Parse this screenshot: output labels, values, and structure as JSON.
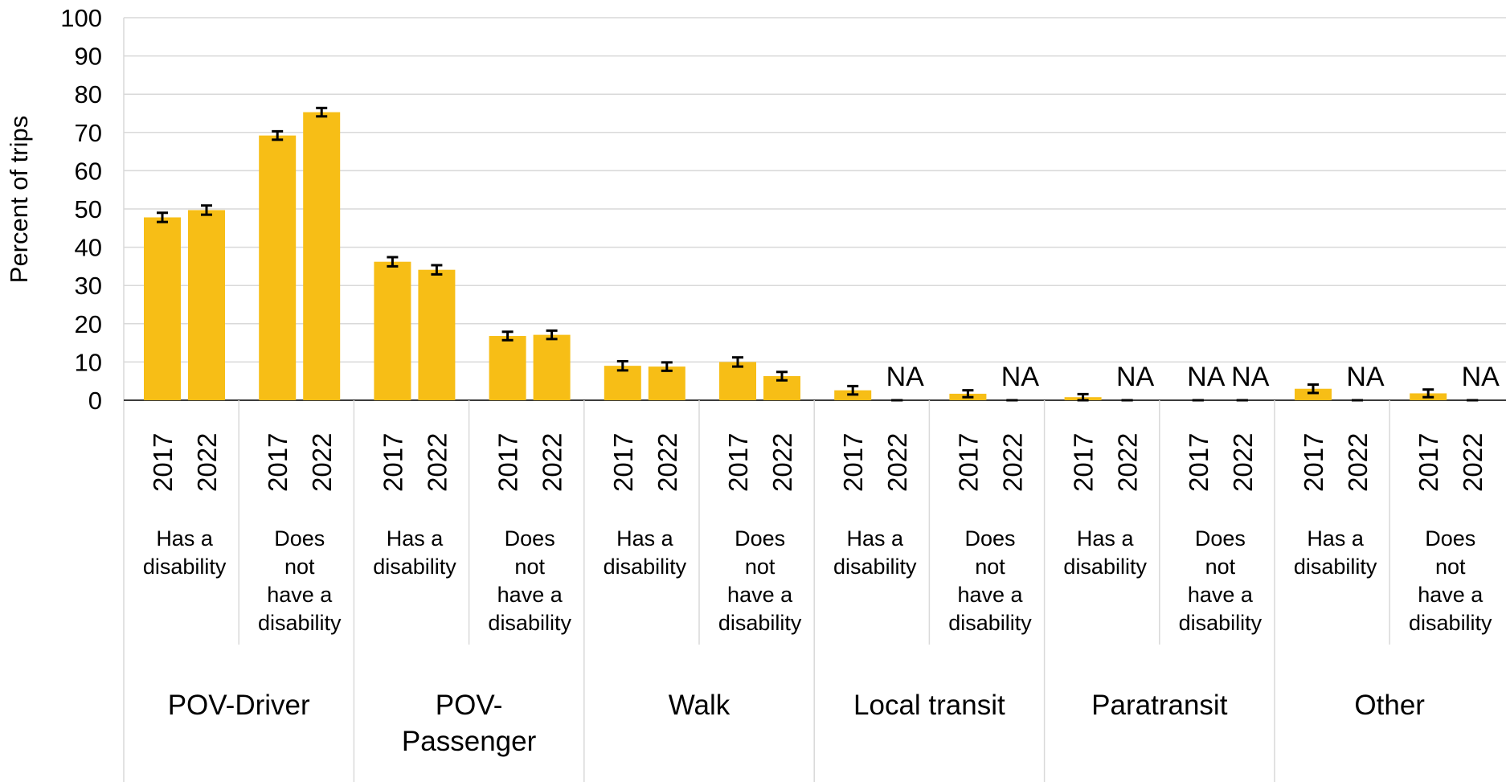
{
  "chart_data": {
    "type": "bar",
    "ylabel": "Percent of trips",
    "ylim": [
      0,
      100
    ],
    "yticks": [
      "0",
      "10",
      "20",
      "30",
      "40",
      "50",
      "60",
      "70",
      "80",
      "90",
      "100"
    ],
    "grid": true,
    "legend": "none",
    "bar_color": "#F7BE16",
    "error_bar_color": "#000000",
    "modes": [
      {
        "name": "POV-Driver",
        "groups": [
          {
            "label": "Has a disability",
            "bars": [
              {
                "year": "2017",
                "value": 47.8,
                "err": 1.2,
                "na": false
              },
              {
                "year": "2022",
                "value": 49.7,
                "err": 1.2,
                "na": false
              }
            ]
          },
          {
            "label": "Does not have a disability",
            "bars": [
              {
                "year": "2017",
                "value": 69.2,
                "err": 1.1,
                "na": false
              },
              {
                "year": "2022",
                "value": 75.3,
                "err": 1.1,
                "na": false
              }
            ]
          }
        ]
      },
      {
        "name": "POV-Passenger",
        "groups": [
          {
            "label": "Has a disability",
            "bars": [
              {
                "year": "2017",
                "value": 36.2,
                "err": 1.2,
                "na": false
              },
              {
                "year": "2022",
                "value": 34.1,
                "err": 1.2,
                "na": false
              }
            ]
          },
          {
            "label": "Does not have a disability",
            "bars": [
              {
                "year": "2017",
                "value": 16.8,
                "err": 1.1,
                "na": false
              },
              {
                "year": "2022",
                "value": 17.1,
                "err": 1.1,
                "na": false
              }
            ]
          }
        ]
      },
      {
        "name": "Walk",
        "groups": [
          {
            "label": "Has a disability",
            "bars": [
              {
                "year": "2017",
                "value": 9.0,
                "err": 1.2,
                "na": false
              },
              {
                "year": "2022",
                "value": 8.8,
                "err": 1.1,
                "na": false
              }
            ]
          },
          {
            "label": "Does not have a disability",
            "bars": [
              {
                "year": "2017",
                "value": 10.0,
                "err": 1.2,
                "na": false
              },
              {
                "year": "2022",
                "value": 6.3,
                "err": 1.1,
                "na": false
              }
            ]
          }
        ]
      },
      {
        "name": "Local transit",
        "groups": [
          {
            "label": "Has a disability",
            "bars": [
              {
                "year": "2017",
                "value": 2.6,
                "err": 1.1,
                "na": false
              },
              {
                "year": "2022",
                "value": 0,
                "err": 0,
                "na": true
              }
            ]
          },
          {
            "label": "Does not have a disability",
            "bars": [
              {
                "year": "2017",
                "value": 1.7,
                "err": 0.9,
                "na": false
              },
              {
                "year": "2022",
                "value": 0,
                "err": 0,
                "na": true
              }
            ]
          }
        ]
      },
      {
        "name": "Paratransit",
        "groups": [
          {
            "label": "Has a disability",
            "bars": [
              {
                "year": "2017",
                "value": 0.8,
                "err": 0.8,
                "na": false
              },
              {
                "year": "2022",
                "value": 0,
                "err": 0,
                "na": true
              }
            ]
          },
          {
            "label": "Does not have a disability",
            "bars": [
              {
                "year": "2017",
                "value": 0,
                "err": 0,
                "na": true
              },
              {
                "year": "2022",
                "value": 0,
                "err": 0,
                "na": true
              }
            ]
          }
        ]
      },
      {
        "name": "Other",
        "groups": [
          {
            "label": "Has a disability",
            "bars": [
              {
                "year": "2017",
                "value": 3.0,
                "err": 1.1,
                "na": false
              },
              {
                "year": "2022",
                "value": 0,
                "err": 0,
                "na": true
              }
            ]
          },
          {
            "label": "Does not have a disability",
            "bars": [
              {
                "year": "2017",
                "value": 1.8,
                "err": 1.0,
                "na": false
              },
              {
                "year": "2022",
                "value": 0,
                "err": 0,
                "na": true
              }
            ]
          }
        ]
      }
    ],
    "na_text": "NA"
  }
}
